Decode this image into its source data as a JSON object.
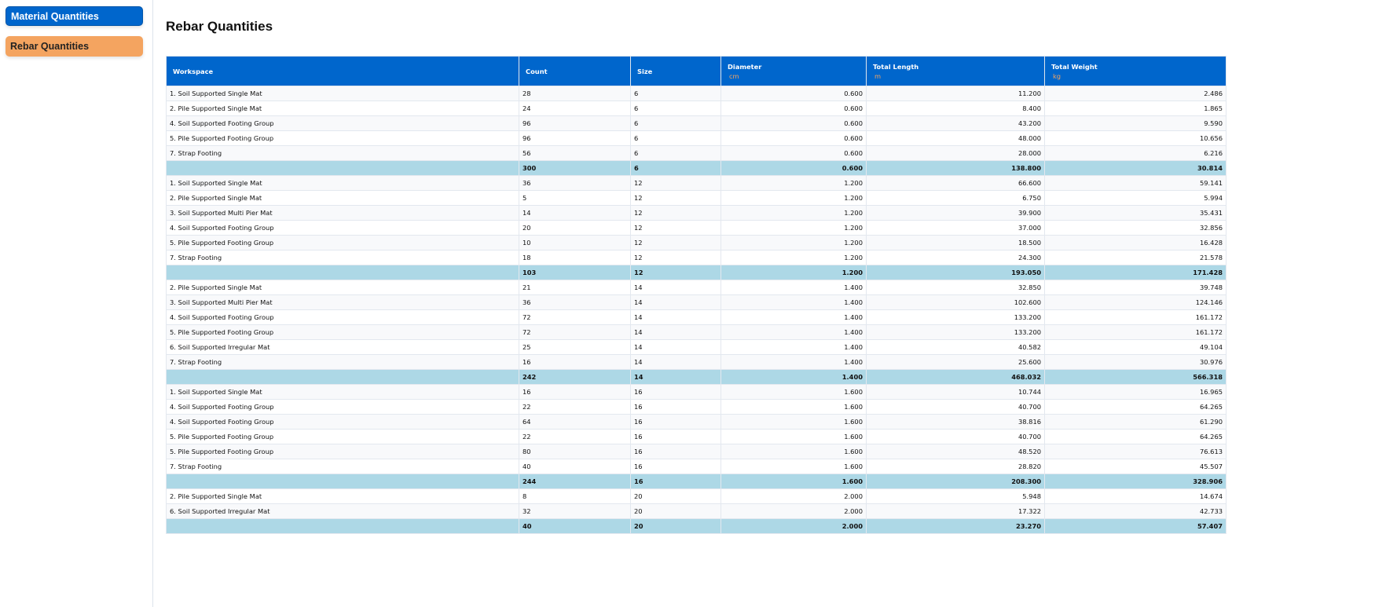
{
  "sidebar": {
    "items": [
      {
        "label": "Material Quantities",
        "active": false
      },
      {
        "label": "Rebar Quantities",
        "active": true
      }
    ]
  },
  "page": {
    "title": "Rebar Quantities"
  },
  "colors": {
    "header_bg": "#0066cc",
    "unit_text": "#f4a460",
    "total_row_bg": "#add8e6",
    "active_nav": "#f4a460"
  },
  "table": {
    "columns": [
      {
        "label": "Workspace",
        "unit": ""
      },
      {
        "label": "Count",
        "unit": ""
      },
      {
        "label": "Size",
        "unit": ""
      },
      {
        "label": "Diameter",
        "unit": "cm"
      },
      {
        "label": "Total Length",
        "unit": "m"
      },
      {
        "label": "Total Weight",
        "unit": "kg"
      }
    ],
    "rows": [
      {
        "type": "item",
        "cells": [
          "1. Soil Supported Single Mat",
          "28",
          "6",
          "0.600",
          "11.200",
          "2.486"
        ]
      },
      {
        "type": "item",
        "cells": [
          "2. Pile Supported Single Mat",
          "24",
          "6",
          "0.600",
          "8.400",
          "1.865"
        ]
      },
      {
        "type": "item",
        "cells": [
          "4. Soil Supported Footing Group",
          "96",
          "6",
          "0.600",
          "43.200",
          "9.590"
        ]
      },
      {
        "type": "item",
        "cells": [
          "5. Pile Supported Footing Group",
          "96",
          "6",
          "0.600",
          "48.000",
          "10.656"
        ]
      },
      {
        "type": "item",
        "cells": [
          "7. Strap Footing",
          "56",
          "6",
          "0.600",
          "28.000",
          "6.216"
        ]
      },
      {
        "type": "total",
        "cells": [
          "",
          "300",
          "6",
          "0.600",
          "138.800",
          "30.814"
        ]
      },
      {
        "type": "item",
        "cells": [
          "1. Soil Supported Single Mat",
          "36",
          "12",
          "1.200",
          "66.600",
          "59.141"
        ]
      },
      {
        "type": "item",
        "cells": [
          "2. Pile Supported Single Mat",
          "5",
          "12",
          "1.200",
          "6.750",
          "5.994"
        ]
      },
      {
        "type": "item",
        "cells": [
          "3. Soil Supported Multi Pier Mat",
          "14",
          "12",
          "1.200",
          "39.900",
          "35.431"
        ]
      },
      {
        "type": "item",
        "cells": [
          "4. Soil Supported Footing Group",
          "20",
          "12",
          "1.200",
          "37.000",
          "32.856"
        ]
      },
      {
        "type": "item",
        "cells": [
          "5. Pile Supported Footing Group",
          "10",
          "12",
          "1.200",
          "18.500",
          "16.428"
        ]
      },
      {
        "type": "item",
        "cells": [
          "7. Strap Footing",
          "18",
          "12",
          "1.200",
          "24.300",
          "21.578"
        ]
      },
      {
        "type": "total",
        "cells": [
          "",
          "103",
          "12",
          "1.200",
          "193.050",
          "171.428"
        ]
      },
      {
        "type": "item",
        "cells": [
          "2. Pile Supported Single Mat",
          "21",
          "14",
          "1.400",
          "32.850",
          "39.748"
        ]
      },
      {
        "type": "item",
        "cells": [
          "3. Soil Supported Multi Pier Mat",
          "36",
          "14",
          "1.400",
          "102.600",
          "124.146"
        ]
      },
      {
        "type": "item",
        "cells": [
          "4. Soil Supported Footing Group",
          "72",
          "14",
          "1.400",
          "133.200",
          "161.172"
        ]
      },
      {
        "type": "item",
        "cells": [
          "5. Pile Supported Footing Group",
          "72",
          "14",
          "1.400",
          "133.200",
          "161.172"
        ]
      },
      {
        "type": "item",
        "cells": [
          "6. Soil Supported Irregular Mat",
          "25",
          "14",
          "1.400",
          "40.582",
          "49.104"
        ]
      },
      {
        "type": "item",
        "cells": [
          "7. Strap Footing",
          "16",
          "14",
          "1.400",
          "25.600",
          "30.976"
        ]
      },
      {
        "type": "total",
        "cells": [
          "",
          "242",
          "14",
          "1.400",
          "468.032",
          "566.318"
        ]
      },
      {
        "type": "item",
        "cells": [
          "1. Soil Supported Single Mat",
          "16",
          "16",
          "1.600",
          "10.744",
          "16.965"
        ]
      },
      {
        "type": "item",
        "cells": [
          "4. Soil Supported Footing Group",
          "22",
          "16",
          "1.600",
          "40.700",
          "64.265"
        ]
      },
      {
        "type": "item",
        "cells": [
          "4. Soil Supported Footing Group",
          "64",
          "16",
          "1.600",
          "38.816",
          "61.290"
        ]
      },
      {
        "type": "item",
        "cells": [
          "5. Pile Supported Footing Group",
          "22",
          "16",
          "1.600",
          "40.700",
          "64.265"
        ]
      },
      {
        "type": "item",
        "cells": [
          "5. Pile Supported Footing Group",
          "80",
          "16",
          "1.600",
          "48.520",
          "76.613"
        ]
      },
      {
        "type": "item",
        "cells": [
          "7. Strap Footing",
          "40",
          "16",
          "1.600",
          "28.820",
          "45.507"
        ]
      },
      {
        "type": "total",
        "cells": [
          "",
          "244",
          "16",
          "1.600",
          "208.300",
          "328.906"
        ]
      },
      {
        "type": "item",
        "cells": [
          "2. Pile Supported Single Mat",
          "8",
          "20",
          "2.000",
          "5.948",
          "14.674"
        ]
      },
      {
        "type": "item",
        "cells": [
          "6. Soil Supported Irregular Mat",
          "32",
          "20",
          "2.000",
          "17.322",
          "42.733"
        ]
      },
      {
        "type": "total",
        "cells": [
          "",
          "40",
          "20",
          "2.000",
          "23.270",
          "57.407"
        ]
      }
    ]
  }
}
